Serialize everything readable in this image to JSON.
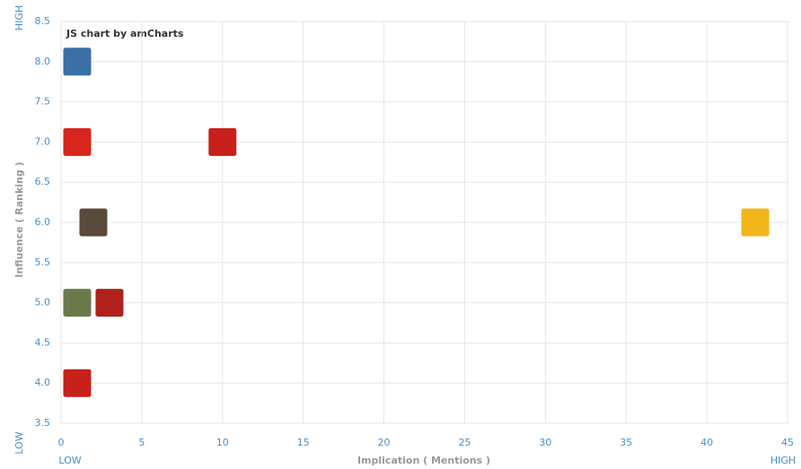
{
  "chart_data": {
    "type": "scatter",
    "credit": "JS chart by amCharts",
    "x_title": "Implication ( Mentions )",
    "y_title": "Influence ( Ranking )",
    "x_low": "LOW",
    "x_high": "HIGH",
    "y_low": "LOW",
    "y_high": "HIGH",
    "x": [
      1,
      1,
      10,
      2,
      43,
      1,
      3,
      1
    ],
    "values": [
      8,
      7,
      7,
      6,
      6,
      5,
      5,
      4
    ],
    "colors": [
      "#3a6fa8",
      "#d9261c",
      "#c8201a",
      "#5a4a3a",
      "#f2b51c",
      "#6b7a4a",
      "#b0201c",
      "#c8201a"
    ],
    "xlim": [
      0,
      45
    ],
    "xticks": [
      0,
      5,
      10,
      15,
      20,
      25,
      30,
      35,
      40,
      45
    ],
    "ylim": [
      3.5,
      8.5
    ],
    "yticks": [
      3.5,
      {
        "value": 4,
        "label": "4.0"
      },
      4.5,
      {
        "value": 5,
        "label": "5.0"
      },
      5.5,
      {
        "value": 6,
        "label": "6.0"
      },
      6.5,
      {
        "value": 7,
        "label": "7.0"
      },
      7.5,
      {
        "value": 8,
        "label": "8.0"
      },
      8.5
    ],
    "grid": true
  }
}
